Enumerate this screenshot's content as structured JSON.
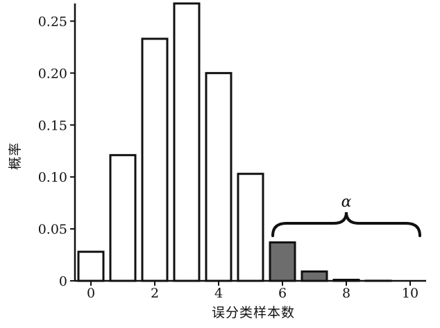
{
  "chart_data": {
    "type": "bar",
    "xlabel": "误分类样本数",
    "ylabel": "概率",
    "x": [
      0,
      1,
      2,
      3,
      4,
      5,
      6,
      7,
      8,
      9,
      10
    ],
    "values": [
      0.028,
      0.121,
      0.233,
      0.267,
      0.2,
      0.103,
      0.037,
      0.009,
      0.001,
      0.0001,
      0.0
    ],
    "highlighted_from_x": 6,
    "x_ticks": [
      "0",
      "2",
      "4",
      "6",
      "8",
      "10"
    ],
    "y_ticks": [
      "0",
      "0.05",
      "0.10",
      "0.15",
      "0.20",
      "0.25"
    ],
    "xlim": [
      -0.5,
      10.5
    ],
    "ylim": [
      0,
      0.267
    ],
    "grid": false,
    "annotation": {
      "label": "α",
      "from_x": 6,
      "to_x": 10
    },
    "colors": {
      "bar_fill": "#ffffff",
      "highlight_fill": "#6d6d6d",
      "stroke": "#111111"
    }
  }
}
